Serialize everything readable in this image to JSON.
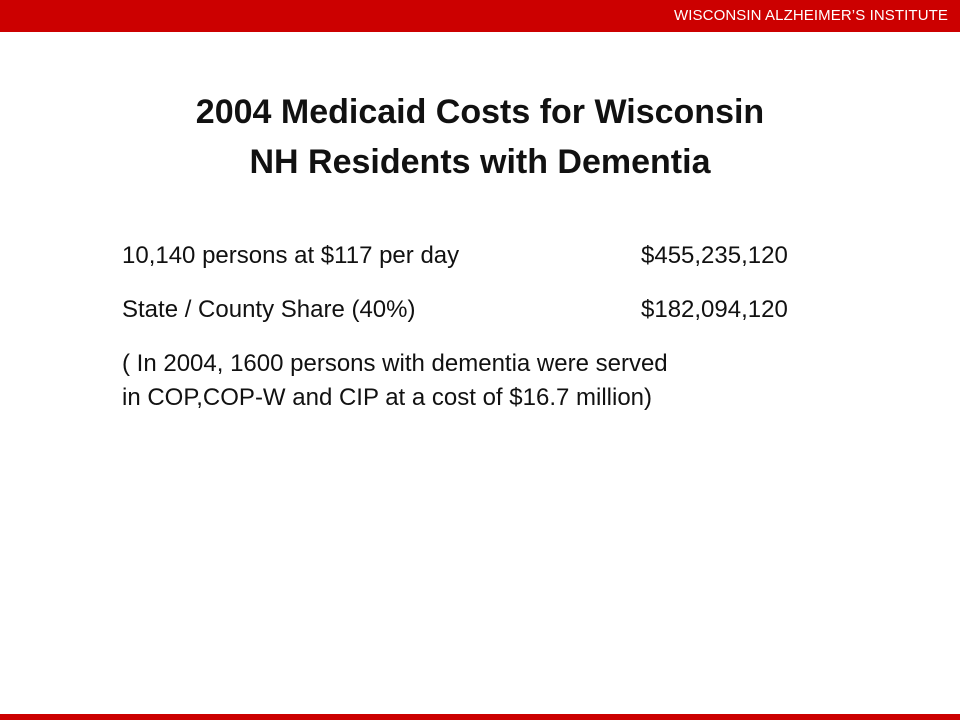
{
  "header": {
    "institute_name": "WISCONSIN ALZHEIMER’S INSTITUTE",
    "accent_color": "#cc0000"
  },
  "slide": {
    "title_lines": [
      "2004 Medicaid Costs for Wisconsin",
      "NH Residents with Dementia"
    ],
    "cost_rows": [
      {
        "label": "10,140 persons at $117 per day",
        "value": "$455,235,120"
      },
      {
        "label": "State / County Share (40%)",
        "value": "$182,094,120"
      }
    ],
    "note_lines": [
      "( In 2004, 1600 persons with dementia were served",
      "in COP,COP-W and CIP at a cost of $16.7 million)"
    ]
  }
}
